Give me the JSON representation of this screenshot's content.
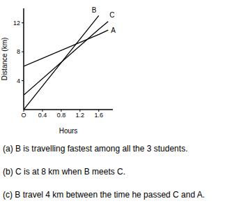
{
  "chart_data": {
    "type": "line",
    "x_label": "Hours",
    "y_label": "Distance (km)",
    "x": [
      0,
      1.6,
      1.8
    ],
    "xlim": [
      0,
      1.9
    ],
    "xticks": [
      {
        "value": 0,
        "label": "O"
      },
      0.4,
      0.8,
      1.2,
      1.6
    ],
    "ylim": [
      0,
      14
    ],
    "yticks": [
      4,
      8,
      12
    ],
    "grid": false,
    "series": [
      {
        "name": "A",
        "color": "#000000",
        "values": [
          6,
          10.4,
          11
        ]
      },
      {
        "name": "B",
        "color": "#000000",
        "values": [
          0,
          13,
          null
        ]
      },
      {
        "name": "C",
        "color": "#000000",
        "values": [
          2,
          11.1,
          12.2
        ]
      }
    ],
    "annotations": [
      "(a) B is travelling fastest among all the 3 students.",
      "(b) C is at 8 km when B meets C.",
      "(c) B travel 4 km between the time he passed C and A."
    ]
  }
}
